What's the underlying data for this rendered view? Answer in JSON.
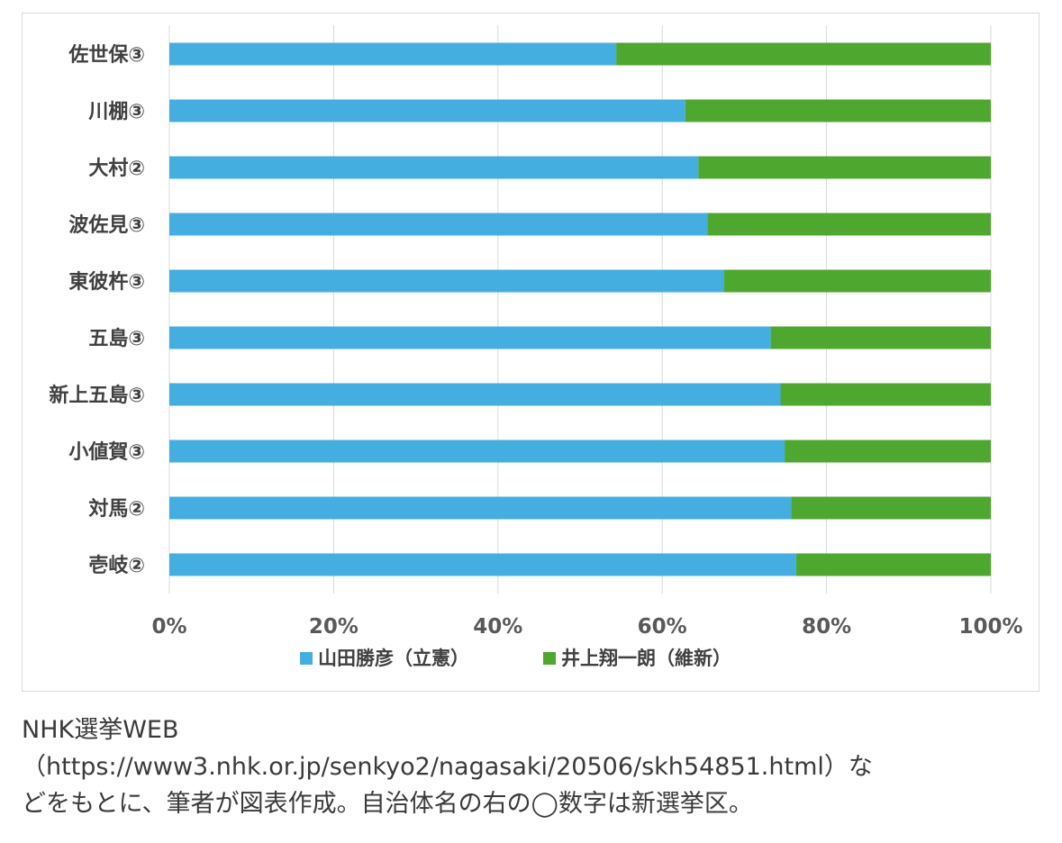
{
  "chart_data": {
    "type": "bar",
    "orientation": "horizontal",
    "stacked": "percent",
    "categories": [
      "佐世保③",
      "川棚③",
      "大村②",
      "波佐見③",
      "東彼杵③",
      "五島③",
      "新上五島③",
      "小値賀③",
      "対馬②",
      "壱岐②"
    ],
    "series": [
      {
        "name": "山田勝彦（立憲）",
        "color": "#45aee0",
        "values": [
          54.4,
          62.8,
          64.4,
          65.5,
          67.5,
          73.2,
          74.4,
          74.9,
          75.7,
          76.3
        ]
      },
      {
        "name": "井上翔一朗（維新）",
        "color": "#4ea72e",
        "values": [
          45.6,
          37.2,
          35.6,
          34.5,
          32.5,
          26.8,
          25.6,
          25.1,
          24.3,
          23.7
        ]
      }
    ],
    "x_ticks": [
      "0%",
      "20%",
      "40%",
      "60%",
      "80%",
      "100%"
    ],
    "xlim": [
      0,
      100
    ],
    "grid": "vertical",
    "legend": "bottom"
  },
  "caption": {
    "line1": "NHK選挙WEB",
    "line2": "（https://www3.nhk.or.jp/senkyo2/nagasaki/20506/skh54851.html）な",
    "line3": "どをもとに、筆者が図表作成。自治体名の右の◯数字は新選挙区。"
  }
}
